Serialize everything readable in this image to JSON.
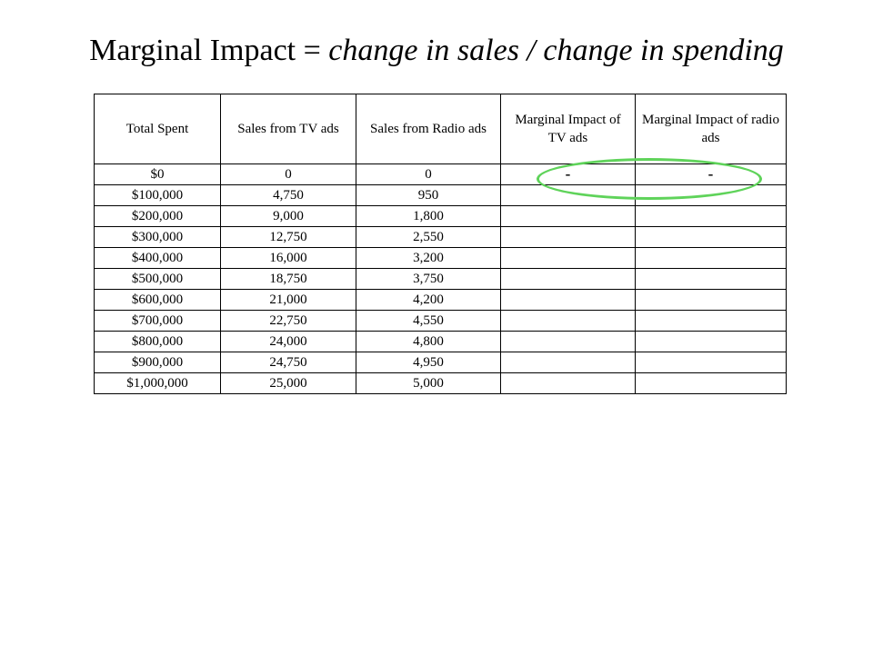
{
  "title": {
    "prefix": "Marginal Impact = ",
    "italic": "change in sales  / change in spending"
  },
  "table": {
    "headers": [
      "Total Spent",
      "Sales from TV ads",
      "Sales from Radio ads",
      "Marginal Impact of TV ads",
      "Marginal Impact of radio ads"
    ],
    "rows": [
      [
        "$0",
        "0",
        "0",
        "-",
        "-"
      ],
      [
        "$100,000",
        "4,750",
        "950",
        "",
        ""
      ],
      [
        "$200,000",
        "9,000",
        "1,800",
        "",
        ""
      ],
      [
        "$300,000",
        "12,750",
        "2,550",
        "",
        ""
      ],
      [
        "$400,000",
        "16,000",
        "3,200",
        "",
        ""
      ],
      [
        "$500,000",
        "18,750",
        "3,750",
        "",
        ""
      ],
      [
        "$600,000",
        "21,000",
        "4,200",
        "",
        ""
      ],
      [
        "$700,000",
        "22,750",
        "4,550",
        "",
        ""
      ],
      [
        "$800,000",
        "24,000",
        "4,800",
        "",
        ""
      ],
      [
        "$900,000",
        "24,750",
        "4,950",
        "",
        ""
      ],
      [
        "$1,000,000",
        "25,000",
        "5,000",
        "",
        ""
      ]
    ]
  },
  "highlight": {
    "color": "#5fd35a"
  }
}
